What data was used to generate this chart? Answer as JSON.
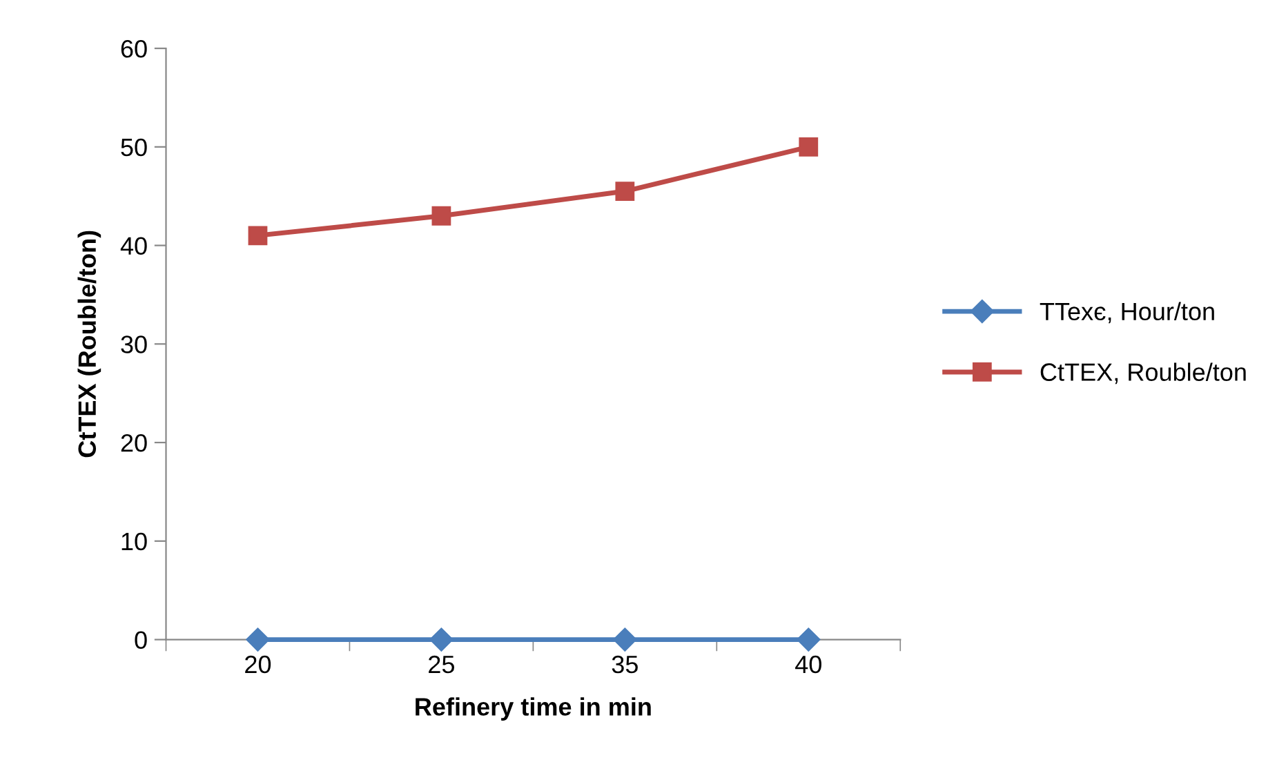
{
  "chart_data": {
    "type": "line",
    "xlabel": "Refinery time in min",
    "ylabel": "CtTEX (Rouble/ton)",
    "categories": [
      "20",
      "25",
      "35",
      "40"
    ],
    "series": [
      {
        "name": "TTexє, Hour/ton",
        "color": "#4a7ebb",
        "marker": "diamond",
        "values": [
          0,
          0,
          0,
          0
        ]
      },
      {
        "name": "CtTEX, Rouble/ton",
        "color": "#be4b48",
        "marker": "square",
        "values": [
          41,
          43,
          45.5,
          50
        ]
      }
    ],
    "ylim": [
      0,
      60
    ],
    "yticks": [
      0,
      10,
      20,
      30,
      40,
      50,
      60
    ],
    "grid": false,
    "legend": "right"
  }
}
